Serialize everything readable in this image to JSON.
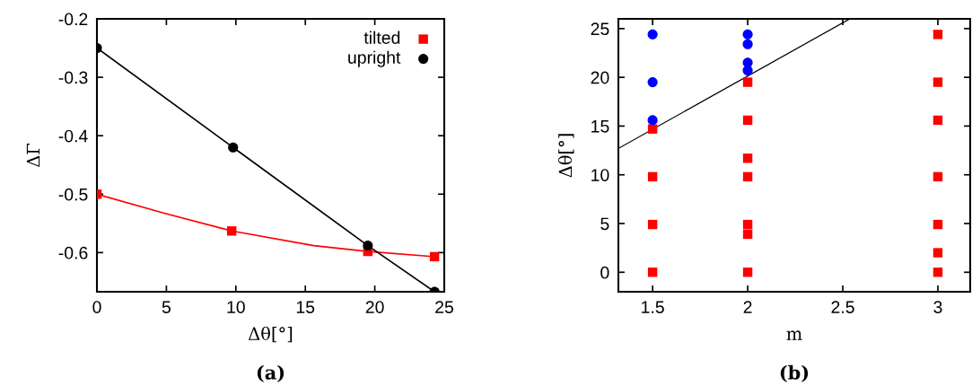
{
  "chart_data": [
    {
      "type": "line",
      "xlabel": "Δθ[°]",
      "ylabel": "ΔΓ",
      "annotations": [
        "(a)"
      ],
      "xlim": [
        0,
        25
      ],
      "ylim": [
        -0.667,
        -0.2
      ],
      "xticks": [
        0,
        5,
        10,
        15,
        20,
        25
      ],
      "yticks": [
        -0.6,
        -0.5,
        -0.4,
        -0.3,
        -0.2
      ],
      "grid": false,
      "legend": "top right",
      "series": [
        {
          "color": "#ff0000",
          "marker": "none",
          "x": [
            0,
            4.9,
            9.7,
            15.6,
            19.5,
            24.3
          ],
          "values": [
            -0.5,
            -0.533,
            -0.563,
            -0.588,
            -0.598,
            -0.607
          ]
        },
        {
          "color": "#000000",
          "marker": "none",
          "x": [
            0,
            9.8,
            19.5,
            24.3
          ],
          "values": [
            -0.25,
            -0.42,
            -0.588,
            -0.667
          ]
        },
        {
          "type": "scatter",
          "name": "tilted",
          "color": "#ff0000",
          "marker": "square",
          "x": [
            0,
            9.7,
            19.5,
            24.3
          ],
          "values": [
            -0.5,
            -0.563,
            -0.598,
            -0.607
          ]
        },
        {
          "type": "scatter",
          "name": "upright",
          "color": "#000000",
          "marker": "circle",
          "x": [
            0,
            9.8,
            19.5,
            24.3
          ],
          "values": [
            -0.25,
            -0.42,
            -0.588,
            -0.667
          ]
        }
      ]
    },
    {
      "type": "scatter",
      "xlabel": "m",
      "ylabel": "Δθ[°]",
      "annotations": [
        "(b)"
      ],
      "xlim": [
        1.32,
        3.17
      ],
      "ylim": [
        -2,
        26
      ],
      "xticks": [
        1.5,
        2,
        2.5,
        3
      ],
      "yticks": [
        0,
        5,
        10,
        15,
        20,
        25
      ],
      "grid": false,
      "legend": false,
      "series": [
        {
          "type": "line",
          "color": "#000000",
          "marker": "none",
          "x": [
            1.32,
            2.537
          ],
          "values": [
            12.7,
            26
          ]
        },
        {
          "color": "#ff0000",
          "marker": "square",
          "x": [
            1.5,
            1.5,
            1.5,
            1.5,
            2,
            2,
            2,
            2,
            2,
            2,
            2,
            3,
            3,
            3,
            3,
            3,
            3,
            3
          ],
          "values": [
            14.7,
            9.8,
            4.9,
            0,
            19.5,
            15.6,
            11.7,
            9.8,
            4.9,
            3.9,
            0,
            24.4,
            19.5,
            15.6,
            9.8,
            4.9,
            2.0,
            0
          ]
        },
        {
          "color": "#0000ff",
          "marker": "circle",
          "x": [
            1.5,
            1.5,
            1.5,
            2,
            2,
            2,
            2
          ],
          "values": [
            24.4,
            19.5,
            15.6,
            24.4,
            23.4,
            21.5,
            20.7
          ]
        }
      ]
    }
  ]
}
